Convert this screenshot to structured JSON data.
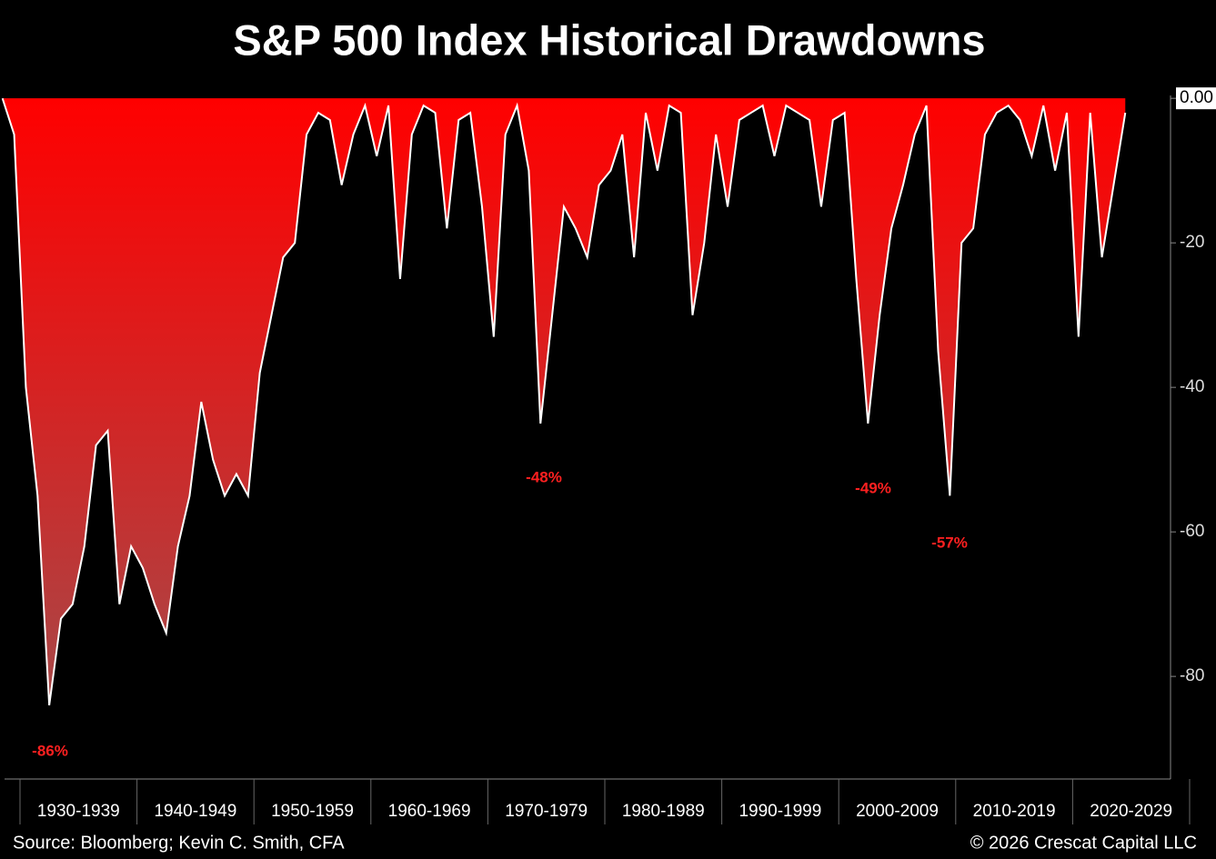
{
  "chart_data": {
    "type": "area",
    "title": "S&P 500 Index Historical Drawdowns",
    "source": "Source: Bloomberg; Kevin C. Smith, CFA",
    "copyright": "© 2026 Crescat Capital LLC",
    "annotations": [
      "-86%",
      "-48%",
      "-49%",
      "-57%"
    ],
    "categories": [
      null,
      null,
      null,
      null,
      null,
      null,
      null,
      "1930-1939",
      null,
      null,
      null,
      null,
      null,
      null,
      null,
      null,
      null,
      "1940-1949",
      null,
      null,
      null,
      null,
      null,
      null,
      null,
      null,
      null,
      "1950-1959",
      null,
      null,
      null,
      null,
      null,
      null,
      null,
      null,
      null,
      "1960-1969",
      null,
      null,
      null,
      null,
      null,
      null,
      null,
      null,
      null,
      "1970-1979",
      null,
      null,
      null,
      null,
      null,
      null,
      null,
      null,
      null,
      "1980-1989",
      null,
      null,
      null,
      null,
      null,
      null,
      null,
      null,
      null,
      "1990-1999",
      null,
      null,
      null,
      null,
      null,
      null,
      null,
      null,
      null,
      "2000-2009",
      null,
      null,
      null,
      null,
      null,
      null,
      null,
      null,
      null,
      "2010-2019",
      null,
      null,
      null,
      null,
      null,
      null,
      null,
      null,
      null,
      "2020-2029",
      null,
      null,
      null,
      null
    ],
    "series": [
      {
        "color": "#ff0000",
        "values": [
          0,
          -5,
          -40,
          -55,
          -84,
          -72,
          -70,
          -62,
          -48,
          -46,
          -70,
          -62,
          -65,
          -70,
          -74,
          -62,
          -55,
          -42,
          -50,
          -55,
          -52,
          -55,
          -38,
          -30,
          -22,
          -20,
          -5,
          -2,
          -3,
          -12,
          -5,
          -1,
          -8,
          -1,
          -25,
          -5,
          -1,
          -2,
          -18,
          -3,
          -2,
          -15,
          -33,
          -5,
          -1,
          -10,
          -45,
          -30,
          -15,
          -18,
          -22,
          -12,
          -10,
          -5,
          -22,
          -2,
          -10,
          -1,
          -2,
          -30,
          -20,
          -5,
          -15,
          -3,
          -2,
          -1,
          -8,
          -1,
          -2,
          -3,
          -15,
          -3,
          -2,
          -25,
          -45,
          -30,
          -18,
          -12,
          -5,
          -1,
          -35,
          -55,
          -20,
          -18,
          -5,
          -2,
          -1,
          -3,
          -8,
          -1,
          -10,
          -2,
          -33,
          -2,
          -22,
          -12,
          -2,
          null,
          null,
          null,
          null,
          null
        ]
      }
    ],
    "ylim": [
      -94.2,
      0.4
    ],
    "yticks": [
      {
        "value": 0,
        "label": "0.00"
      },
      -20,
      -40,
      -60,
      -80
    ]
  }
}
